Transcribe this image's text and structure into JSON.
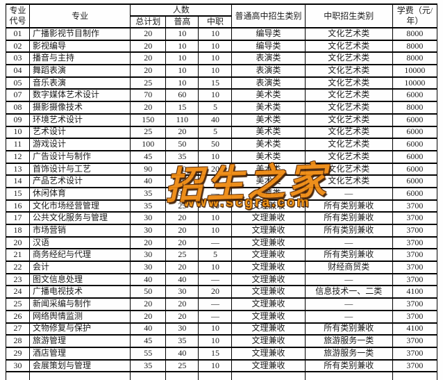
{
  "table": {
    "header": {
      "code": "专业代号",
      "major": "专业",
      "renshu": "人数",
      "total": "总计划",
      "pugao": "普高",
      "zhongzhi": "中职",
      "gz_type": "普通高中招生类别",
      "zz_type": "中职招生类别",
      "fee": "学费（元/年）"
    },
    "rows": [
      {
        "code": "01",
        "major": "广播影视节目制作",
        "total": "20",
        "pugao": "10",
        "zhongzhi": "10",
        "gz_type": "编导类",
        "zz_type": "文化艺术类",
        "fee": "8000"
      },
      {
        "code": "02",
        "major": "影视编导",
        "total": "20",
        "pugao": "10",
        "zhongzhi": "10",
        "gz_type": "编导类",
        "zz_type": "文化艺术类",
        "fee": "8000"
      },
      {
        "code": "03",
        "major": "播音与主持",
        "total": "20",
        "pugao": "10",
        "zhongzhi": "10",
        "gz_type": "表演类",
        "zz_type": "文化艺术类",
        "fee": "8000"
      },
      {
        "code": "04",
        "major": "舞蹈表演",
        "total": "20",
        "pugao": "10",
        "zhongzhi": "10",
        "gz_type": "表演类",
        "zz_type": "文化艺术类",
        "fee": "10000"
      },
      {
        "code": "05",
        "major": "音乐表演",
        "total": "25",
        "pugao": "10",
        "zhongzhi": "15",
        "gz_type": "表演类",
        "zz_type": "文化艺术类",
        "fee": "10000"
      },
      {
        "code": "07",
        "major": "数字媒体艺术设计",
        "total": "70",
        "pugao": "60",
        "zhongzhi": "10",
        "gz_type": "美术类",
        "zz_type": "文化艺术类",
        "fee": "6000"
      },
      {
        "code": "08",
        "major": "摄影摄像技术",
        "total": "20",
        "pugao": "15",
        "zhongzhi": "5",
        "gz_type": "美术类",
        "zz_type": "文化艺术类",
        "fee": "8000"
      },
      {
        "code": "09",
        "major": "环境艺术设计",
        "total": "150",
        "pugao": "110",
        "zhongzhi": "40",
        "gz_type": "美术类",
        "zz_type": "文化艺术类",
        "fee": "6000"
      },
      {
        "code": "10",
        "major": "艺术设计",
        "total": "25",
        "pugao": "20",
        "zhongzhi": "5",
        "gz_type": "美术类",
        "zz_type": "文化艺术类",
        "fee": "6000"
      },
      {
        "code": "11",
        "major": "游戏设计",
        "total": "100",
        "pugao": "50",
        "zhongzhi": "50",
        "gz_type": "美术类",
        "zz_type": "文化艺术类",
        "fee": "6000"
      },
      {
        "code": "12",
        "major": "广告设计与制作",
        "total": "45",
        "pugao": "35",
        "zhongzhi": "10",
        "gz_type": "美术类",
        "zz_type": "文化艺术类",
        "fee": "6000"
      },
      {
        "code": "13",
        "major": "首饰设计与工艺",
        "total": "90",
        "pugao": "70",
        "zhongzhi": "20",
        "gz_type": "美术类",
        "zz_type": "文化艺术类",
        "fee": "6000"
      },
      {
        "code": "14",
        "major": "产品艺术设计",
        "total": "40",
        "pugao": "30",
        "zhongzhi": "10",
        "gz_type": "美术类",
        "zz_type": "文化艺术类",
        "fee": "6000"
      },
      {
        "code": "15",
        "major": "休闲体育",
        "total": "35",
        "pugao": "35",
        "zhongzhi": "—",
        "gz_type": "体育类",
        "zz_type": "—",
        "fee": "6000"
      },
      {
        "code": "16",
        "major": "文化市场经营管理",
        "total": "35",
        "pugao": "25",
        "zhongzhi": "10",
        "gz_type": "文理兼收",
        "zz_type": "所有类别兼收",
        "fee": "3700"
      },
      {
        "code": "17",
        "major": "公共文化服务与管理",
        "total": "30",
        "pugao": "20",
        "zhongzhi": "10",
        "gz_type": "文理兼收",
        "zz_type": "所有类别兼收",
        "fee": "3700"
      },
      {
        "code": "18",
        "major": "市场营销",
        "total": "30",
        "pugao": "20",
        "zhongzhi": "10",
        "gz_type": "文理兼收",
        "zz_type": "所有类别兼收",
        "fee": "3700"
      },
      {
        "code": "20",
        "major": "汉语",
        "total": "20",
        "pugao": "20",
        "zhongzhi": "—",
        "gz_type": "文理兼收",
        "zz_type": "—",
        "fee": "3700"
      },
      {
        "code": "21",
        "major": "商务经纪与代理",
        "total": "30",
        "pugao": "25",
        "zhongzhi": "5",
        "gz_type": "文理兼收",
        "zz_type": "所有类别兼收",
        "fee": "3700"
      },
      {
        "code": "22",
        "major": "会计",
        "total": "30",
        "pugao": "20",
        "zhongzhi": "10",
        "gz_type": "文理兼收",
        "zz_type": "财经商贸类",
        "fee": "3700"
      },
      {
        "code": "23",
        "major": "图文信息处理",
        "total": "40",
        "pugao": "40",
        "zhongzhi": "—",
        "gz_type": "文理兼收",
        "zz_type": "—",
        "fee": "3700"
      },
      {
        "code": "24",
        "major": "广播电视技术",
        "total": "50",
        "pugao": "30",
        "zhongzhi": "20",
        "gz_type": "文理兼收",
        "zz_type": "信息技术一、二类",
        "fee": "4100"
      },
      {
        "code": "25",
        "major": "新闻采编与制作",
        "total": "20",
        "pugao": "20",
        "zhongzhi": "—",
        "gz_type": "文理兼收",
        "zz_type": "—",
        "fee": "3700"
      },
      {
        "code": "26",
        "major": "网络舆情监测",
        "total": "20",
        "pugao": "20",
        "zhongzhi": "—",
        "gz_type": "文理兼收",
        "zz_type": "—",
        "fee": "3700"
      },
      {
        "code": "27",
        "major": "文物修复与保护",
        "total": "40",
        "pugao": "30",
        "zhongzhi": "10",
        "gz_type": "文理兼收",
        "zz_type": "所有类别兼收",
        "fee": "4100"
      },
      {
        "code": "28",
        "major": "旅游管理",
        "total": "45",
        "pugao": "35",
        "zhongzhi": "10",
        "gz_type": "文理兼收",
        "zz_type": "旅游服务一类",
        "fee": "3700"
      },
      {
        "code": "29",
        "major": "酒店管理",
        "total": "55",
        "pugao": "40",
        "zhongzhi": "15",
        "gz_type": "文理兼收",
        "zz_type": "旅游服务一类",
        "fee": "3700"
      },
      {
        "code": "30",
        "major": "会展策划与管理",
        "total": "35",
        "pugao": "25",
        "zhongzhi": "10",
        "gz_type": "文理兼收",
        "zz_type": "所有类别兼收",
        "fee": "3700"
      }
    ]
  },
  "watermark": {
    "title": "招生之家",
    "url": "www.scgra.com",
    "color": "#ee8a10"
  }
}
